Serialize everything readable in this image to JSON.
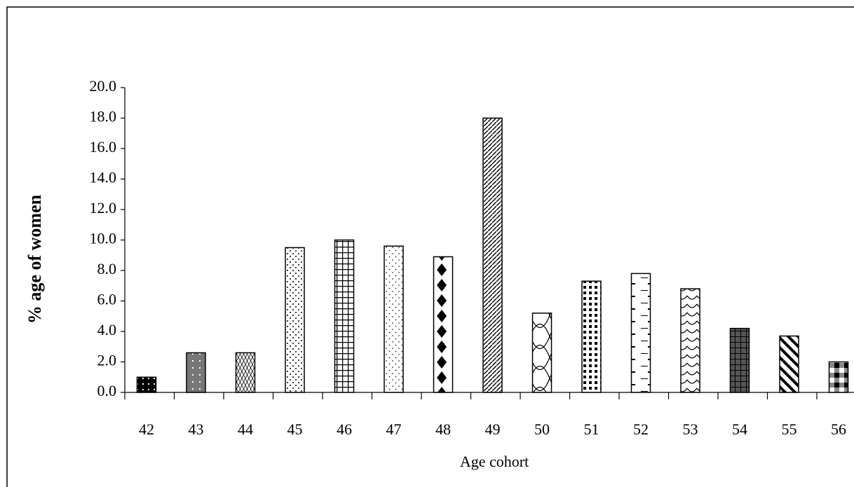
{
  "chart_data": {
    "type": "bar",
    "x_label": "Age cohort",
    "y_label": "%  age of women",
    "categories": [
      "42",
      "43",
      "44",
      "45",
      "46",
      "47",
      "48",
      "49",
      "50",
      "51",
      "52",
      "53",
      "54",
      "55",
      "56"
    ],
    "values": [
      1.0,
      2.6,
      2.6,
      9.5,
      10.0,
      9.6,
      8.9,
      18.0,
      5.2,
      7.3,
      7.8,
      6.8,
      4.2,
      3.7,
      2.0
    ],
    "ylim": [
      0,
      20
    ],
    "yticks": [
      {
        "value": 0,
        "label": "0.0"
      },
      {
        "value": 2,
        "label": "2.0"
      },
      {
        "value": 4,
        "label": "4.0"
      },
      {
        "value": 6,
        "label": "6.0"
      },
      {
        "value": 8,
        "label": "8.0"
      },
      {
        "value": 10,
        "label": "10.0"
      },
      {
        "value": 12,
        "label": "12.0"
      },
      {
        "value": 14,
        "label": "14.0"
      },
      {
        "value": 16,
        "label": "16.0"
      },
      {
        "value": 18,
        "label": "18.0"
      },
      {
        "value": 20,
        "label": "20.0"
      }
    ],
    "grid": false
  }
}
